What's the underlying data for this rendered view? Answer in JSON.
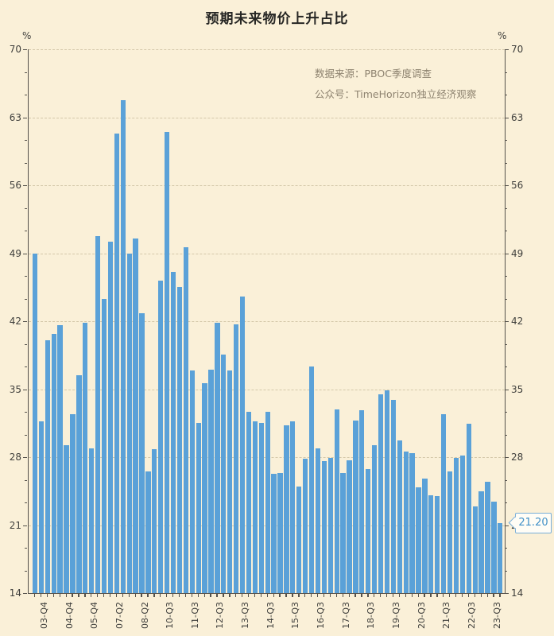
{
  "page": {
    "background": "#faf0d8"
  },
  "title": {
    "text": "预期未来物价上升占比"
  },
  "annotations": {
    "line1": "数据来源：PBOC季度调查",
    "line2": "公众号：TimeHorizon独立经济观察"
  },
  "axes": {
    "unit_left": "%",
    "unit_right": "%"
  },
  "callout": {
    "text": "21.20"
  },
  "chart_data": {
    "type": "bar",
    "title": "预期未来物价上升占比",
    "xlabel": "",
    "ylabel": "%",
    "ylim": [
      14,
      70
    ],
    "yticks": [
      14,
      21,
      28,
      35,
      42,
      49,
      56,
      63,
      70
    ],
    "grid": "horizontal dashed at major yticks, mirrored y axes, minor ticks at thirds",
    "legend": "none",
    "bar_color": "#5aa1d8",
    "x_tick_labels": [
      "03-Q4",
      "04-Q4",
      "05-Q4",
      "07-Q2",
      "08-Q2",
      "10-Q3",
      "11-Q3",
      "12-Q3",
      "13-Q3",
      "14-Q3",
      "15-Q3",
      "16-Q3",
      "17-Q3",
      "18-Q3",
      "19-Q3",
      "20-Q3",
      "21-Q3",
      "22-Q3",
      "23-Q3"
    ],
    "label_every": 4,
    "values": [
      49.0,
      31.7,
      40.0,
      40.7,
      41.6,
      29.2,
      32.4,
      36.4,
      41.8,
      28.9,
      50.8,
      44.3,
      50.2,
      61.3,
      64.8,
      49.0,
      50.5,
      42.8,
      26.5,
      28.8,
      46.2,
      61.5,
      47.1,
      45.5,
      49.6,
      36.9,
      31.5,
      35.6,
      37.0,
      41.8,
      38.6,
      36.9,
      41.7,
      44.5,
      32.7,
      31.7,
      31.5,
      32.7,
      26.3,
      26.4,
      31.3,
      31.7,
      25.0,
      27.8,
      37.3,
      28.9,
      27.6,
      27.9,
      32.9,
      26.4,
      27.7,
      31.8,
      32.8,
      26.8,
      29.2,
      34.5,
      34.9,
      33.9,
      29.7,
      28.6,
      28.4,
      24.9,
      25.8,
      24.1,
      24.0,
      32.4,
      26.5,
      27.9,
      28.2,
      31.4,
      22.9,
      24.5,
      25.5,
      23.4,
      21.2
    ],
    "last_value_label": "21.20"
  }
}
